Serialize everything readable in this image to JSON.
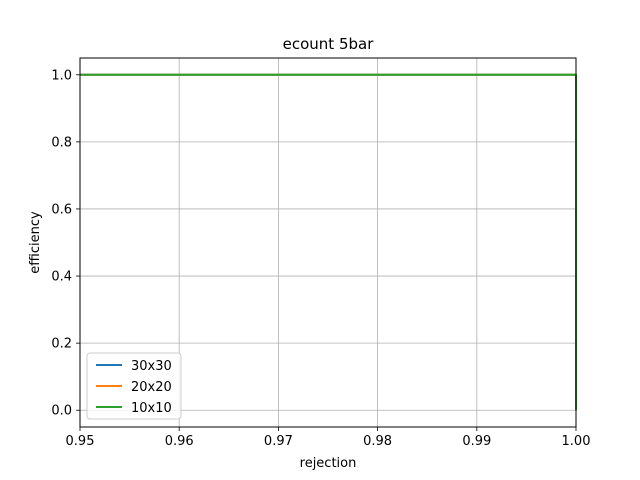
{
  "chart_data": {
    "type": "line",
    "title": "ecount 5bar",
    "xlabel": "rejection",
    "ylabel": "efficiency",
    "xlim": [
      0.95,
      1.0
    ],
    "ylim": [
      -0.05,
      1.05
    ],
    "xticks": [
      0.95,
      0.96,
      0.97,
      0.98,
      0.99,
      1.0
    ],
    "xtick_labels": [
      "0.95",
      "0.96",
      "0.97",
      "0.98",
      "0.99",
      "1.00"
    ],
    "yticks": [
      0.0,
      0.2,
      0.4,
      0.6,
      0.8,
      1.0
    ],
    "ytick_labels": [
      "0.0",
      "0.2",
      "0.4",
      "0.6",
      "0.8",
      "1.0"
    ],
    "grid": true,
    "legend_position": "lower-left",
    "series": [
      {
        "name": "30x30",
        "color": "#1f77b4",
        "points": [
          [
            0.95,
            1.0
          ],
          [
            1.0,
            1.0
          ],
          [
            1.0,
            0.0
          ]
        ]
      },
      {
        "name": "20x20",
        "color": "#ff7f0e",
        "points": [
          [
            0.95,
            1.0
          ],
          [
            1.0,
            1.0
          ],
          [
            1.0,
            0.0
          ]
        ]
      },
      {
        "name": "10x10",
        "color": "#2ca02c",
        "points": [
          [
            0.95,
            1.0
          ],
          [
            1.0,
            1.0
          ],
          [
            1.0,
            0.0
          ]
        ]
      }
    ]
  }
}
